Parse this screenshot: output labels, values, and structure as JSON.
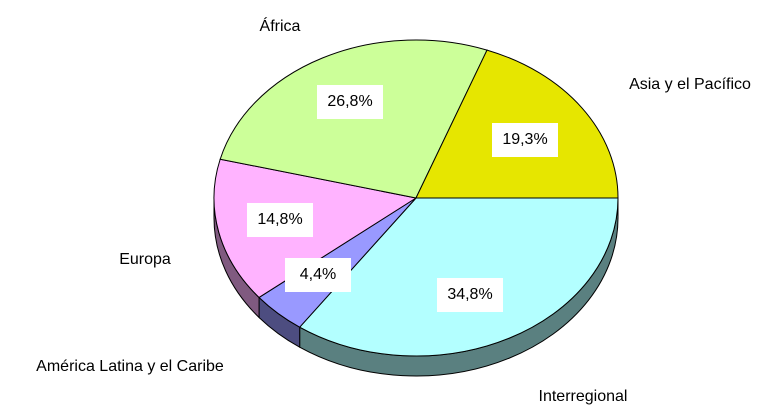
{
  "chart_data": {
    "type": "pie3d",
    "categories": [
      "Interregional",
      "América Latina y el Caribe",
      "Europa",
      "África",
      "Asia y el Pacífico"
    ],
    "values": [
      34.8,
      4.4,
      14.8,
      26.8,
      19.3
    ],
    "value_labels": [
      "34,8%",
      "4,4%",
      "14,8%",
      "26,8%",
      "19,3%"
    ],
    "colors": [
      "#b3ffff",
      "#9999ff",
      "#ffb3ff",
      "#ccff99",
      "#e6e600"
    ]
  }
}
